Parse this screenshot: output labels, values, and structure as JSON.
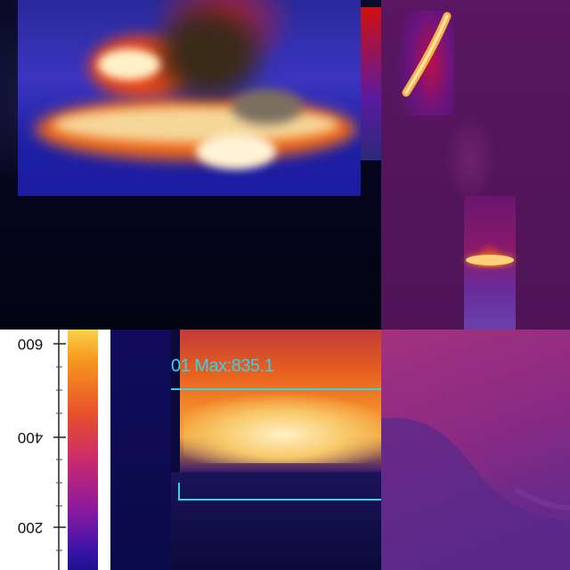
{
  "panels": {
    "scale": {
      "ticks": [
        {
          "label": "600"
        },
        {
          "label": "400"
        },
        {
          "label": "200"
        }
      ]
    },
    "fire_readout": {
      "text": "01 Max:835.1"
    }
  },
  "colors": {
    "readout": "#34d4e8",
    "scale_top": "#fbd24a",
    "scale_bottom": "#1e128c"
  }
}
